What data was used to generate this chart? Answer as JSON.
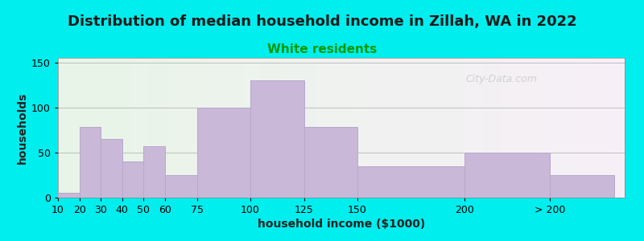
{
  "title": "Distribution of median household income in Zillah, WA in 2022",
  "subtitle": "White residents",
  "xlabel": "household income ($1000)",
  "ylabel": "households",
  "bar_labels": [
    "10",
    "20",
    "30",
    "40",
    "50",
    "60",
    "75",
    "100",
    "125",
    "150",
    "200",
    "> 200"
  ],
  "bar_values": [
    5,
    78,
    65,
    40,
    57,
    25,
    100,
    130,
    78,
    35,
    50,
    25
  ],
  "bar_color": "#c9b8d8",
  "bar_edge_color": "#b8a8cc",
  "background_color": "#00eeee",
  "ylim": [
    0,
    155
  ],
  "yticks": [
    0,
    50,
    100,
    150
  ],
  "title_fontsize": 13,
  "subtitle_fontsize": 11,
  "subtitle_color": "#009900",
  "axis_label_fontsize": 10,
  "tick_fontsize": 9,
  "watermark_text": "City-Data.com",
  "watermark_color": "#cccccc",
  "tick_positions": [
    10,
    20,
    30,
    40,
    50,
    60,
    75,
    100,
    125,
    150,
    200,
    240
  ],
  "bar_left_edges": [
    10,
    20,
    30,
    40,
    50,
    60,
    75,
    100,
    125,
    150,
    200,
    240
  ],
  "bar_widths": [
    10,
    10,
    10,
    10,
    10,
    15,
    25,
    25,
    25,
    50,
    40,
    30
  ],
  "xlim_left": 10,
  "xlim_right": 275
}
